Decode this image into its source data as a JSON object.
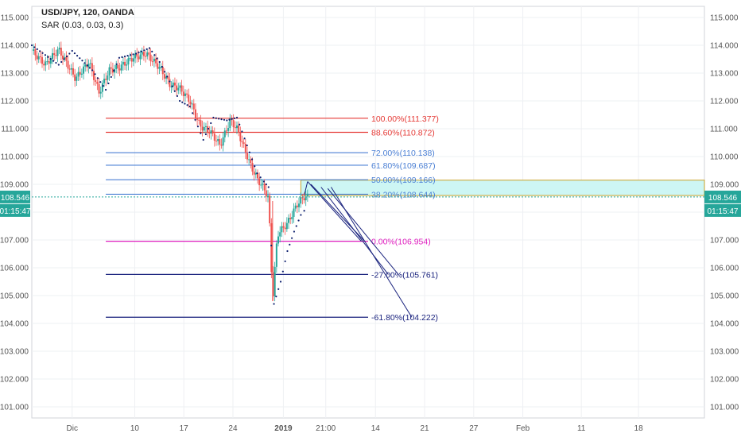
{
  "header": {
    "symbol_line": "USD/JPY, 120, OANDA",
    "indicator_line": "SAR (0.03, 0.03, 0.3)"
  },
  "colors": {
    "grid": "#eef0f3",
    "axis": "#555555",
    "candle_up": "#26a69a",
    "candle_down": "#ef5350",
    "sar": "#0d1f6e",
    "price_line": "#26a69a",
    "zone_fill": "#cdf6f4",
    "zone_border": "#c9a227",
    "tag_bg": "#26a69a"
  },
  "chart_data": {
    "type": "candlestick",
    "y_axis": {
      "range": [
        100.6,
        115.4
      ],
      "tick_labels": [
        "115.000",
        "114.000",
        "113.000",
        "112.000",
        "111.000",
        "110.000",
        "109.000",
        "108.000",
        "107.000",
        "106.000",
        "105.000",
        "104.000",
        "103.000",
        "102.000",
        "101.000"
      ],
      "tick_values": [
        115,
        114,
        113,
        112,
        111,
        110,
        109,
        108,
        107,
        106,
        105,
        104,
        103,
        102,
        101
      ]
    },
    "x_axis": {
      "tick_labels": [
        "Dic",
        "10",
        "17",
        "24",
        "2019",
        "21:00",
        "14",
        "21",
        "27",
        "Feb",
        "11",
        "18"
      ],
      "tick_positions": [
        0.06,
        0.153,
        0.226,
        0.299,
        0.374,
        0.437,
        0.511,
        0.584,
        0.657,
        0.73,
        0.817,
        0.902
      ],
      "bold_index": 4
    },
    "price_path": [
      [
        0.0,
        113.8
      ],
      [
        0.02,
        113.3
      ],
      [
        0.04,
        113.85
      ],
      [
        0.065,
        112.8
      ],
      [
        0.085,
        113.4
      ],
      [
        0.1,
        112.3
      ],
      [
        0.115,
        113.1
      ],
      [
        0.13,
        113.2
      ],
      [
        0.15,
        113.55
      ],
      [
        0.17,
        113.7
      ],
      [
        0.19,
        113.2
      ],
      [
        0.205,
        112.6
      ],
      [
        0.22,
        112.45
      ],
      [
        0.235,
        112.0
      ],
      [
        0.25,
        111.1
      ],
      [
        0.265,
        110.9
      ],
      [
        0.28,
        110.4
      ],
      [
        0.295,
        111.3
      ],
      [
        0.305,
        111.0
      ],
      [
        0.315,
        110.35
      ],
      [
        0.325,
        109.7
      ],
      [
        0.335,
        109.2
      ],
      [
        0.345,
        108.85
      ],
      [
        0.352,
        108.5
      ],
      [
        0.358,
        104.8
      ],
      [
        0.365,
        107.2
      ],
      [
        0.38,
        107.6
      ],
      [
        0.395,
        108.3
      ],
      [
        0.405,
        108.55
      ],
      [
        0.41,
        108.546
      ]
    ],
    "sar_path": [
      [
        0.0,
        114.0
      ],
      [
        0.04,
        113.3
      ],
      [
        0.06,
        113.8
      ],
      [
        0.09,
        113.1
      ],
      [
        0.11,
        112.4
      ],
      [
        0.13,
        113.55
      ],
      [
        0.155,
        113.7
      ],
      [
        0.175,
        113.9
      ],
      [
        0.19,
        113.4
      ],
      [
        0.205,
        112.7
      ],
      [
        0.22,
        112.0
      ],
      [
        0.235,
        111.8
      ],
      [
        0.255,
        110.6
      ],
      [
        0.27,
        111.4
      ],
      [
        0.29,
        111.3
      ],
      [
        0.305,
        111.4
      ],
      [
        0.32,
        110.4
      ],
      [
        0.335,
        109.4
      ],
      [
        0.345,
        109.1
      ],
      [
        0.352,
        108.9
      ],
      [
        0.36,
        104.7
      ],
      [
        0.37,
        105.5
      ],
      [
        0.38,
        106.6
      ],
      [
        0.39,
        107.3
      ],
      [
        0.4,
        107.9
      ],
      [
        0.41,
        108.2
      ]
    ],
    "fib_levels": [
      {
        "label": "100.00%(111.377)",
        "value": 111.377,
        "color": "#e53935",
        "x0": 0.11,
        "x1": 0.5
      },
      {
        "label": "88.60%(110.872)",
        "value": 110.872,
        "color": "#e53935",
        "x0": 0.11,
        "x1": 0.5
      },
      {
        "label": "72.00%(110.138)",
        "value": 110.138,
        "color": "#4a7fd4",
        "x0": 0.11,
        "x1": 0.5
      },
      {
        "label": "61.80%(109.687)",
        "value": 109.687,
        "color": "#4a7fd4",
        "x0": 0.11,
        "x1": 0.5
      },
      {
        "label": "50.00%(109.166)",
        "value": 109.166,
        "color": "#4a7fd4",
        "x0": 0.11,
        "x1": 0.5
      },
      {
        "label": "38.20%(108.644)",
        "value": 108.644,
        "color": "#4a7fd4",
        "x0": 0.11,
        "x1": 0.5
      },
      {
        "label": "0.00%(106.954)",
        "value": 106.954,
        "color": "#e020c0",
        "x0": 0.11,
        "x1": 0.5
      },
      {
        "label": "-27.00%(105.761)",
        "value": 105.761,
        "color": "#1a237e",
        "x0": 0.11,
        "x1": 0.5
      },
      {
        "label": "-61.80%(104.222)",
        "value": 104.222,
        "color": "#1a237e",
        "x0": 0.11,
        "x1": 0.5
      }
    ],
    "zone": {
      "y_top": 109.15,
      "y_bottom": 108.6,
      "x0": 0.4,
      "x1": 1.0
    },
    "projection_lines": [
      [
        [
          0.405,
          108.6
        ],
        [
          0.41,
          109.1
        ]
      ],
      [
        [
          0.41,
          109.1
        ],
        [
          0.49,
          106.95
        ]
      ],
      [
        [
          0.415,
          109.0
        ],
        [
          0.495,
          106.95
        ]
      ],
      [
        [
          0.43,
          108.9
        ],
        [
          0.53,
          105.76
        ]
      ],
      [
        [
          0.44,
          108.85
        ],
        [
          0.545,
          105.76
        ]
      ],
      [
        [
          0.445,
          108.9
        ],
        [
          0.565,
          104.22
        ]
      ]
    ],
    "current_price": {
      "value": 108.546,
      "label": "108.546",
      "countdown": "01:15:47"
    }
  }
}
